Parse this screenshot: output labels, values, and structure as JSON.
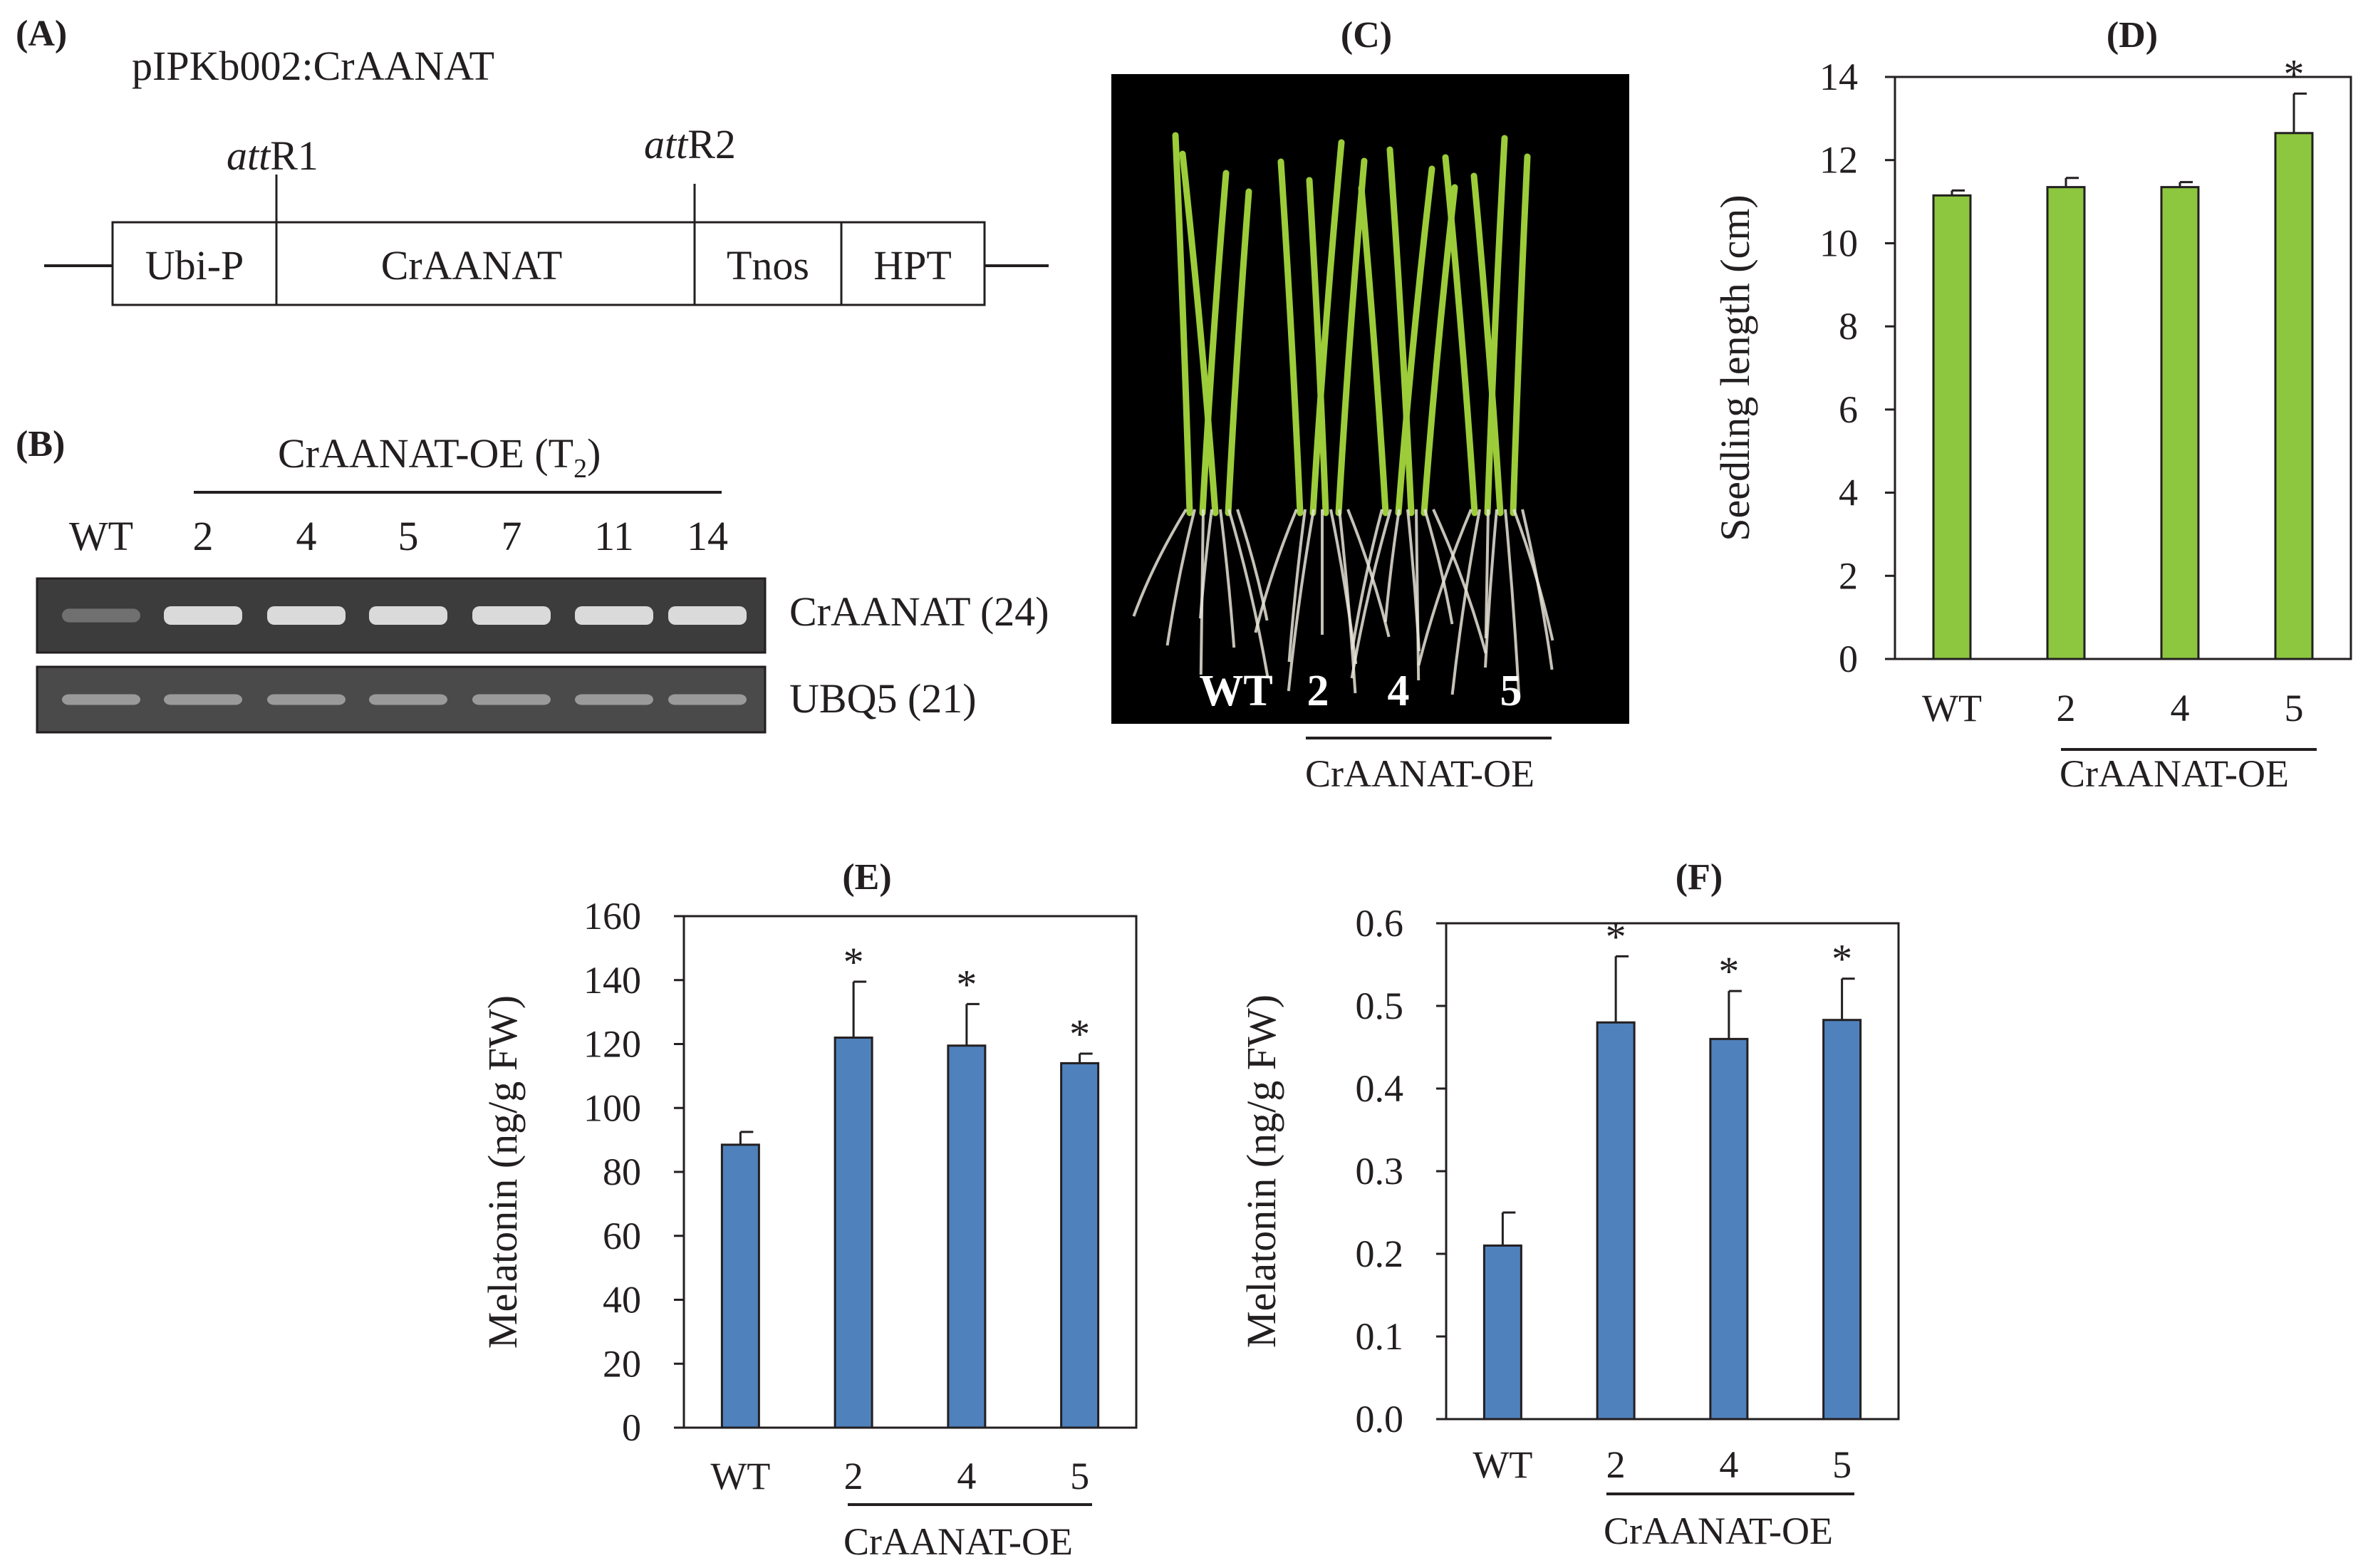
{
  "figure": {
    "panelA": {
      "label": "(A)",
      "title": "pIPKb002:CrAANAT",
      "site1": {
        "italic": "att",
        "rest": "R1"
      },
      "site2": {
        "italic": "att",
        "rest": "R2"
      },
      "blocks": [
        "Ubi-P",
        "CrAANAT",
        "Tnos",
        "HPT"
      ]
    },
    "panelB": {
      "label": "(B)",
      "group_title": "CrAANAT-OE (T",
      "group_subscript": "2",
      "group_title_end": ")",
      "lanes": [
        "WT",
        "2",
        "4",
        "5",
        "7",
        "11",
        "14"
      ],
      "rows": [
        {
          "name": "CrAANAT (24)",
          "band_strength": [
            0.35,
            1,
            1,
            1,
            1,
            1,
            1
          ]
        },
        {
          "name": "UBQ5 (21)",
          "band_strength": [
            0.6,
            0.6,
            0.6,
            0.6,
            0.6,
            0.6,
            0.6
          ]
        }
      ]
    },
    "panelC": {
      "label": "(C)",
      "photo_labels": [
        "WT",
        "2",
        "4",
        "5"
      ],
      "group_label": "CrAANAT-OE"
    },
    "panelD": {
      "label": "(D)",
      "group_label": "CrAANAT-OE"
    },
    "panelE": {
      "label": "(E)",
      "group_label": "CrAANAT-OE"
    },
    "panelF": {
      "label": "(F)",
      "group_label": "CrAANAT-OE"
    }
  },
  "colors": {
    "green_bar": "#8dc63f",
    "blue_bar": "#4f81bd",
    "axis": "#231f20",
    "photo_bg": "#000000",
    "leaf": "#9ccc3a",
    "root": "#e8e4d8"
  },
  "chart_data": [
    {
      "id": "D",
      "type": "bar",
      "categories": [
        "WT",
        "2",
        "4",
        "5"
      ],
      "values": [
        11.15,
        11.35,
        11.35,
        12.65
      ],
      "errors": [
        0.12,
        0.22,
        0.12,
        0.95
      ],
      "significant": [
        false,
        false,
        false,
        true
      ],
      "significance_marker": "*",
      "ylabel": "Seedling length (cm)",
      "ylim": [
        0,
        14
      ],
      "yticks": [
        "0",
        "2",
        "4",
        "6",
        "8",
        "10",
        "12",
        "14"
      ],
      "grid": false
    },
    {
      "id": "E",
      "type": "bar",
      "categories": [
        "WT",
        "2",
        "4",
        "5"
      ],
      "values": [
        88.5,
        122,
        119.5,
        114
      ],
      "errors": [
        4,
        17.5,
        13,
        3
      ],
      "significant": [
        false,
        true,
        true,
        true
      ],
      "significance_marker": "*",
      "ylabel": "Melatonin (ng/g FW)",
      "ylim": [
        0,
        160
      ],
      "yticks": [
        "0",
        "20",
        "40",
        "60",
        "80",
        "100",
        "120",
        "140",
        "160"
      ],
      "grid": false
    },
    {
      "id": "F",
      "type": "bar",
      "categories": [
        "WT",
        "2",
        "4",
        "5"
      ],
      "values": [
        0.21,
        0.48,
        0.46,
        0.483
      ],
      "errors": [
        0.04,
        0.08,
        0.058,
        0.05
      ],
      "significant": [
        false,
        true,
        true,
        true
      ],
      "significance_marker": "*",
      "ylabel": "Melatonin (ng/g FW)",
      "ylim": [
        0,
        0.6
      ],
      "yticks": [
        "0.0",
        "0.1",
        "0.2",
        "0.3",
        "0.4",
        "0.5",
        "0.6"
      ],
      "grid": false
    }
  ]
}
